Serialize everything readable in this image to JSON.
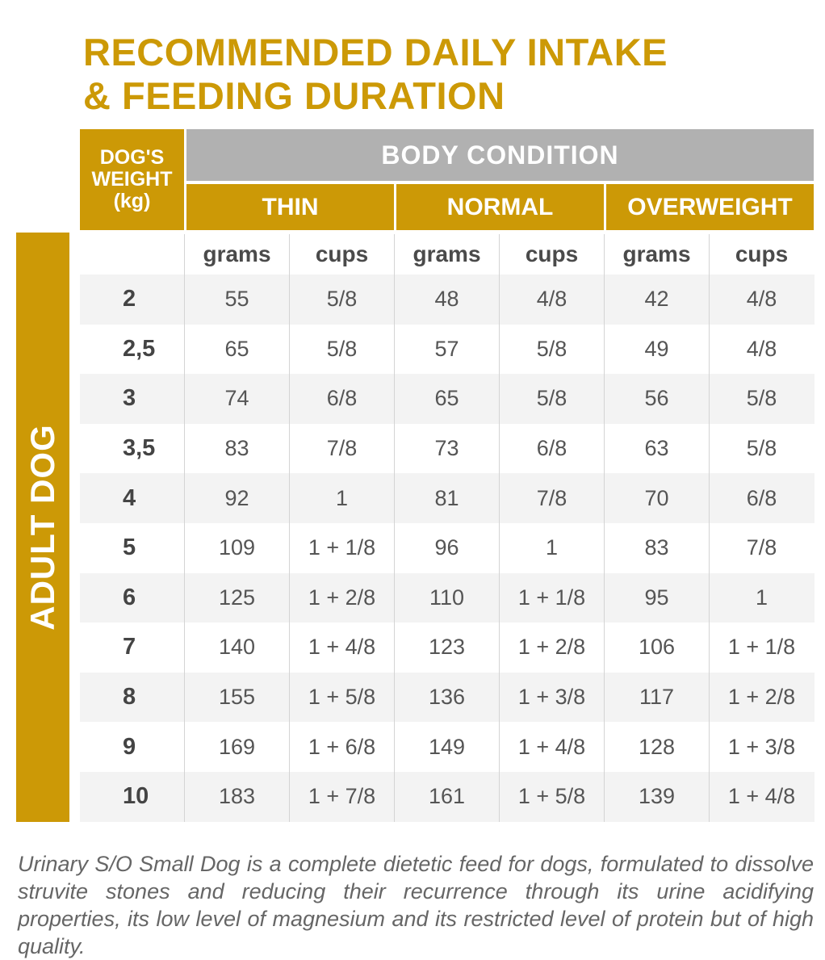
{
  "title": {
    "line1": "RECOMMENDED DAILY INTAKE",
    "line2": "& FEEDING DURATION"
  },
  "colors": {
    "accent": "#CC9906",
    "header_gray": "#B1B1B1",
    "row_shade": "#F3F3F3"
  },
  "table": {
    "weight_header": "DOG'S WEIGHT (kg)",
    "body_condition": "BODY CONDITION",
    "conditions": [
      "THIN",
      "NORMAL",
      "OVERWEIGHT"
    ],
    "units": [
      "grams",
      "cups",
      "grams",
      "cups",
      "grams",
      "cups"
    ],
    "side_label": "ADULT DOG",
    "rows": [
      [
        "2",
        "55",
        "5/8",
        "48",
        "4/8",
        "42",
        "4/8"
      ],
      [
        "2,5",
        "65",
        "5/8",
        "57",
        "5/8",
        "49",
        "4/8"
      ],
      [
        "3",
        "74",
        "6/8",
        "65",
        "5/8",
        "56",
        "5/8"
      ],
      [
        "3,5",
        "83",
        "7/8",
        "73",
        "6/8",
        "63",
        "5/8"
      ],
      [
        "4",
        "92",
        "1",
        "81",
        "7/8",
        "70",
        "6/8"
      ],
      [
        "5",
        "109",
        "1 + 1/8",
        "96",
        "1",
        "83",
        "7/8"
      ],
      [
        "6",
        "125",
        "1 + 2/8",
        "110",
        "1 + 1/8",
        "95",
        "1"
      ],
      [
        "7",
        "140",
        "1 + 4/8",
        "123",
        "1 + 2/8",
        "106",
        "1 + 1/8"
      ],
      [
        "8",
        "155",
        "1 + 5/8",
        "136",
        "1 + 3/8",
        "117",
        "1 + 2/8"
      ],
      [
        "9",
        "169",
        "1 + 6/8",
        "149",
        "1 + 4/8",
        "128",
        "1 + 3/8"
      ],
      [
        "10",
        "183",
        "1 + 7/8",
        "161",
        "1 + 5/8",
        "139",
        "1 + 4/8"
      ]
    ]
  },
  "description": "Urinary S/O Small Dog is a complete dietetic feed for dogs, formulated to dissolve struvite stones and reducing their recurrence through its urine acidifying properties, its low level of magnesium and its restricted level of protein but of high quality."
}
